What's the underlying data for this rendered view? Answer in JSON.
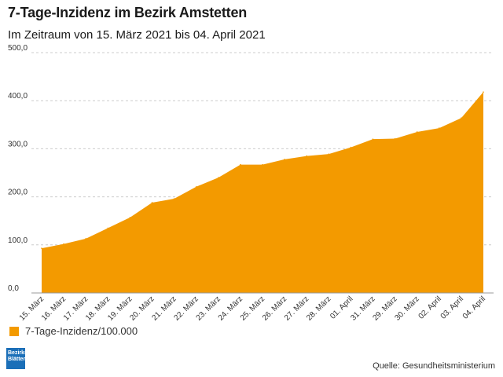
{
  "title": "7-Tage-Inzidenz im Bezirk Amstetten",
  "subtitle": "Im Zeitraum von 15. März 2021 bis 04. April 2021",
  "source": "Quelle: Gesundheitsministerium",
  "logo": {
    "line1": "Bezirks",
    "line2": "Blätter"
  },
  "colors": {
    "area": "#f39a00",
    "grid": "#cccccc",
    "logo": "#1b6fb8"
  },
  "chart_data": {
    "type": "area",
    "title": "7-Tage-Inzidenz im Bezirk Amstetten",
    "subtitle": "Im Zeitraum von 15. März 2021 bis 04. April 2021",
    "categories": [
      "15. März",
      "16. März",
      "17. März",
      "18. März",
      "19. März",
      "20. März",
      "21. März",
      "22. März",
      "23. März",
      "24. März",
      "25. März",
      "26. März",
      "27. März",
      "28. März",
      "01. April",
      "31. März",
      "29. März",
      "30. März",
      "02. April",
      "03. April",
      "04. April"
    ],
    "series": [
      {
        "name": "7-Tage-Inzidenz/100.000",
        "color": "#f39a00",
        "values": [
          93,
          102,
          113,
          135,
          157,
          188,
          196,
          221,
          240,
          267,
          267,
          278,
          285,
          289,
          303,
          320,
          321,
          335,
          343,
          364,
          418
        ]
      }
    ],
    "ylim": [
      0,
      500
    ],
    "yticks": [
      0,
      100,
      200,
      300,
      400,
      500
    ],
    "ytick_labels": [
      "0,0",
      "100,0",
      "200,0",
      "300,0",
      "400,0",
      "500,0"
    ],
    "grid": true,
    "legend_position": "bottom-left",
    "xlabel": "",
    "ylabel": ""
  }
}
